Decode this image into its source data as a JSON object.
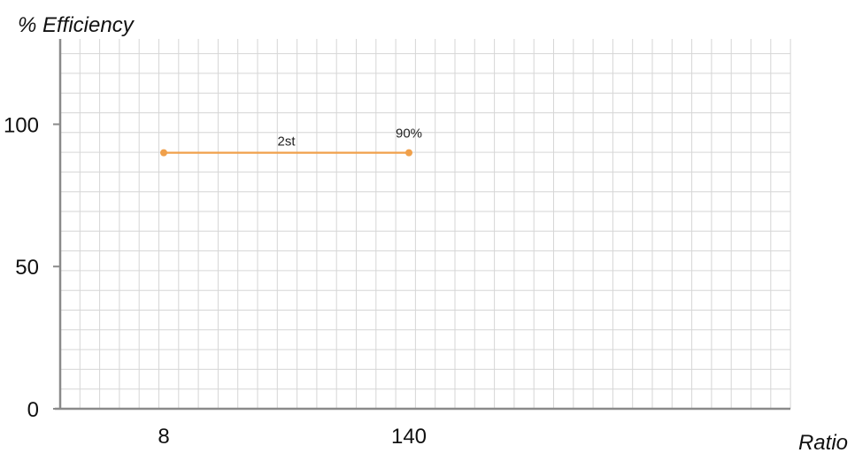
{
  "chart_data": {
    "type": "line",
    "ylabel": "% Efficiency",
    "xlabel": "Ratio",
    "x_ticks": [
      "8",
      "140"
    ],
    "y_ticks": [
      0,
      50,
      100
    ],
    "ylim": [
      0,
      130
    ],
    "grid": true,
    "series": [
      {
        "name": "2st",
        "color": "#f0a04b",
        "points": [
          {
            "x": "8",
            "y": 90
          },
          {
            "x": "140",
            "y": 90
          }
        ]
      }
    ],
    "annotations": [
      {
        "text": "2st",
        "anchor": "series-middle"
      },
      {
        "text": "90%",
        "anchor": "series-end"
      }
    ]
  }
}
